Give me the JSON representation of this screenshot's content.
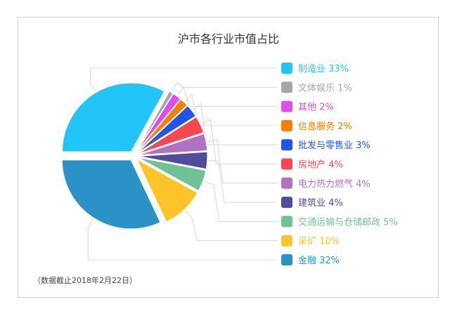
{
  "chart_data": {
    "type": "pie",
    "title": "沪市各行业市值占比",
    "note": "（数据截止2018年2月22日）",
    "slices": [
      {
        "name": "制造业",
        "value": 33,
        "label": "制造业 33%",
        "color": "#22c5f7"
      },
      {
        "name": "文体娱乐",
        "value": 1,
        "label": "文体娱乐 1%",
        "color": "#a6a6a6"
      },
      {
        "name": "其他",
        "value": 2,
        "label": "其他 2%",
        "color": "#e14ded"
      },
      {
        "name": "信息服务",
        "value": 2,
        "label": "信息服务 2%",
        "color": "#f77f00"
      },
      {
        "name": "批发与零售业",
        "value": 3,
        "label": "批发与零售业 3%",
        "color": "#2155e8"
      },
      {
        "name": "房地产",
        "value": 4,
        "label": "房地产 4%",
        "color": "#f64752"
      },
      {
        "name": "电力热力燃气",
        "value": 4,
        "label": "电力热力燃气 4%",
        "color": "#b272c3"
      },
      {
        "name": "建筑业",
        "value": 4,
        "label": "建筑业 4%",
        "color": "#514c9c"
      },
      {
        "name": "交通运输与仓储邮政",
        "value": 5,
        "label": "交通运输与仓储邮政 5%",
        "color": "#6ec296"
      },
      {
        "name": "采矿",
        "value": 10,
        "label": "采矿 10%",
        "color": "#fdc42a"
      },
      {
        "name": "金融",
        "value": 32,
        "label": "金融 32%",
        "color": "#2b92c8"
      }
    ]
  }
}
